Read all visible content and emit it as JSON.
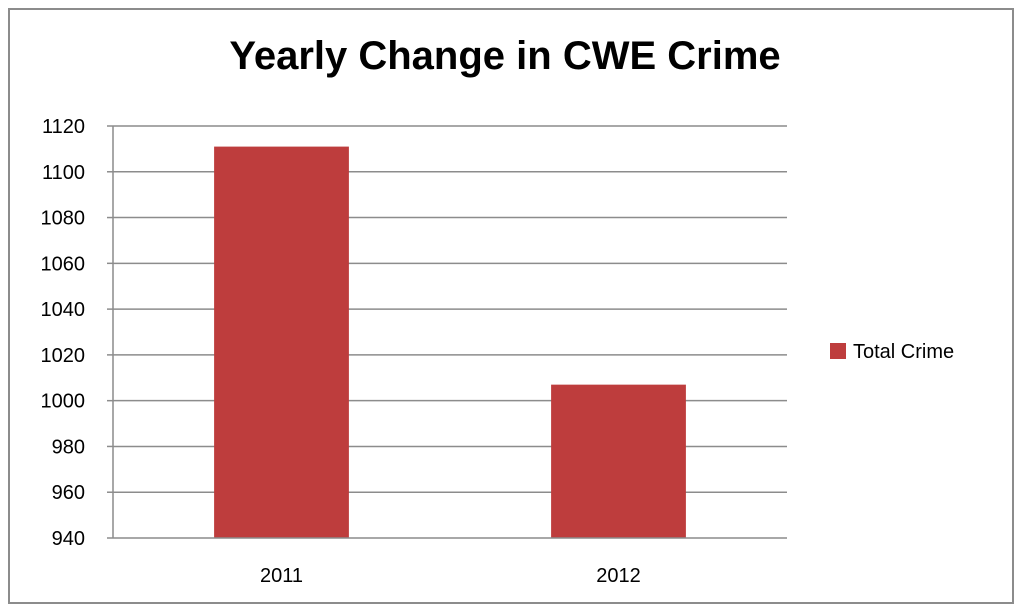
{
  "chart_data": {
    "type": "bar",
    "title": "Yearly Change in CWE Crime",
    "categories": [
      "2011",
      "2012"
    ],
    "series": [
      {
        "name": "Total Crime",
        "values": [
          1111,
          1007
        ],
        "color": "#be3d3d"
      }
    ],
    "ylim": [
      940,
      1120
    ],
    "yticks": [
      940,
      960,
      980,
      1000,
      1020,
      1040,
      1060,
      1080,
      1100,
      1120
    ],
    "grid": true,
    "legend_position": "right"
  }
}
